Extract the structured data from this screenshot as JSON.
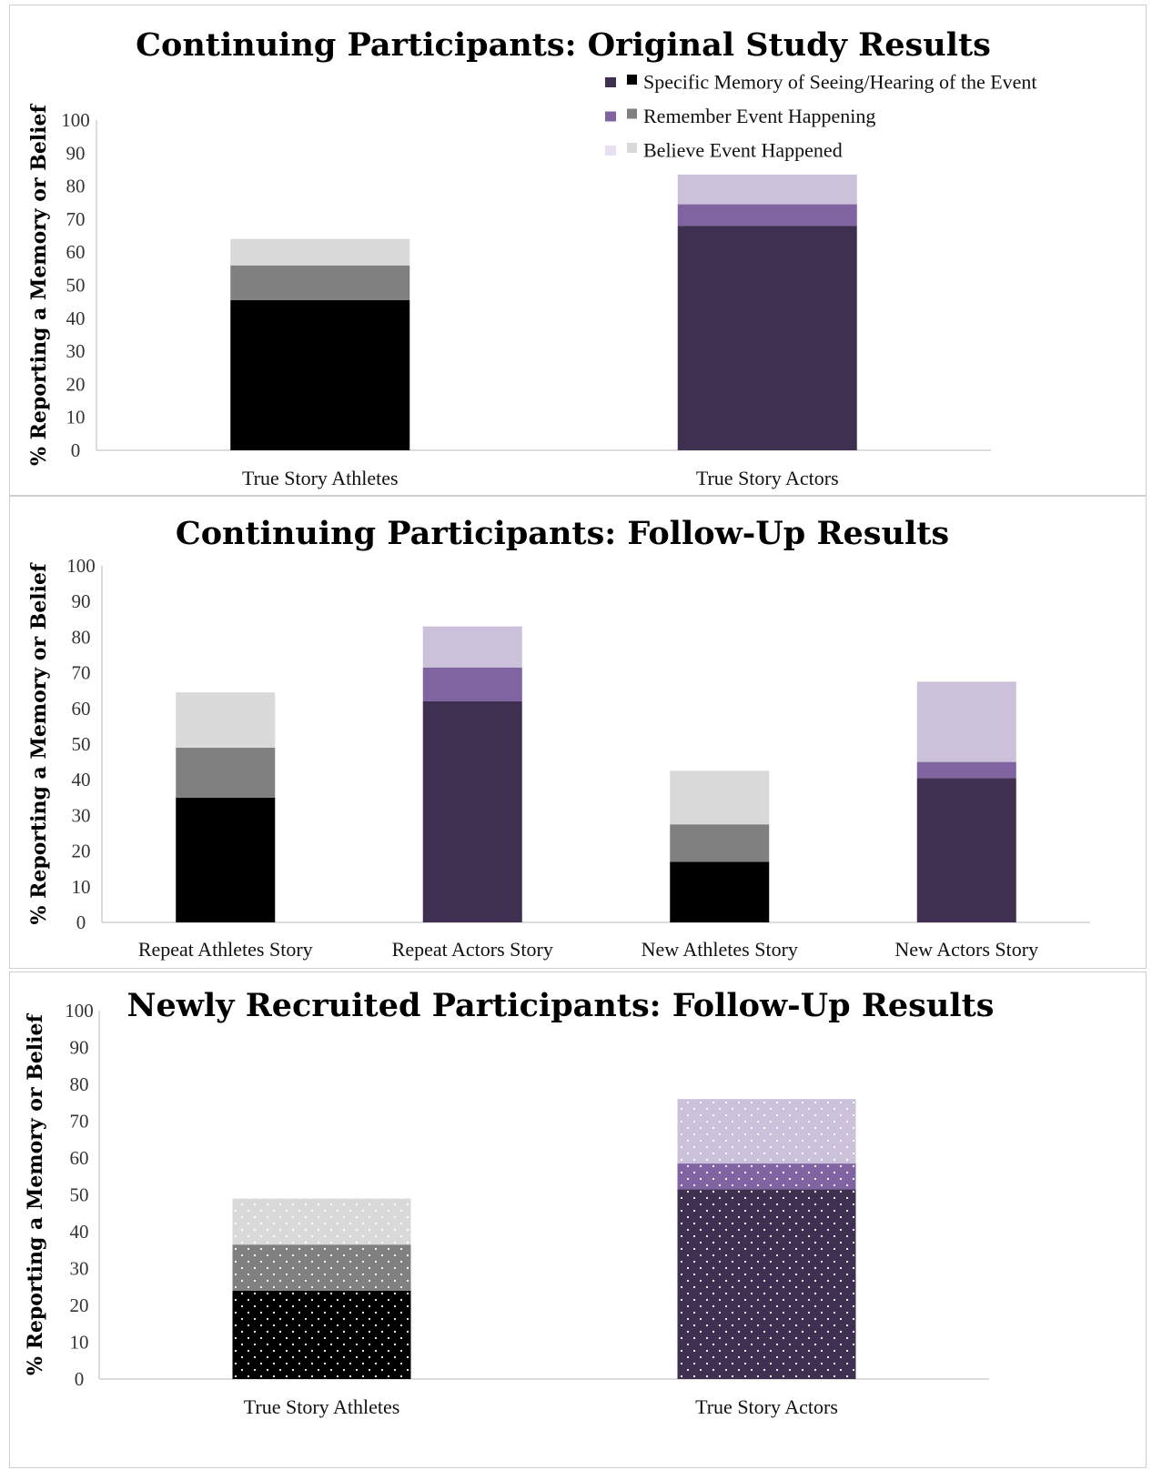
{
  "colors": {
    "purple_dark": "#3f3052",
    "purple_mid": "#8064a2",
    "purple_light": "#ccc1da",
    "black": "#000000",
    "gray_mid": "#808080",
    "gray_light": "#d9d9d9"
  },
  "legend": {
    "placement": "top-right of first panel",
    "items": [
      {
        "label": "Specific Memory of Seeing/Hearing of the Event",
        "swatch_purple": "#3f3052",
        "swatch_gray": "#000000"
      },
      {
        "label": "Remember Event Happening",
        "swatch_purple": "#8064a2",
        "swatch_gray": "#808080"
      },
      {
        "label": "Believe Event Happened",
        "swatch_purple": "#e8e0f0",
        "swatch_gray": "#d9d9d9"
      }
    ]
  },
  "chart_data": [
    {
      "type": "bar",
      "stacked": true,
      "title": "Continuing Participants: Original Study Results",
      "ylabel": "% Reporting a Memory or Belief",
      "ylim": [
        0,
        100
      ],
      "yticks": [
        0,
        10,
        20,
        30,
        40,
        50,
        60,
        70,
        80,
        90,
        100
      ],
      "categories": [
        "True Story Athletes",
        "True Story Actors"
      ],
      "palettes": [
        "gray",
        "purple"
      ],
      "pattern": "none",
      "series": [
        {
          "name": "Specific Memory of Seeing/Hearing of the Event",
          "values": [
            45.5,
            68
          ]
        },
        {
          "name": "Remember Event Happening",
          "values": [
            10.5,
            6.5
          ]
        },
        {
          "name": "Believe Event Happened",
          "values": [
            8,
            9
          ]
        }
      ]
    },
    {
      "type": "bar",
      "stacked": true,
      "title": "Continuing Participants: Follow-Up Results",
      "ylabel": "% Reporting a Memory or Belief",
      "ylim": [
        0,
        100
      ],
      "yticks": [
        0,
        10,
        20,
        30,
        40,
        50,
        60,
        70,
        80,
        90,
        100
      ],
      "categories": [
        "Repeat Athletes Story",
        "Repeat Actors Story",
        "New Athletes Story",
        "New Actors Story"
      ],
      "palettes": [
        "gray",
        "purple",
        "gray",
        "purple"
      ],
      "pattern": "none",
      "series": [
        {
          "name": "Specific Memory of Seeing/Hearing of the Event",
          "values": [
            35,
            62,
            17,
            40.5
          ]
        },
        {
          "name": "Remember Event Happening",
          "values": [
            14,
            9.5,
            10.5,
            4.5
          ]
        },
        {
          "name": "Believe Event Happened",
          "values": [
            15.5,
            11.5,
            15,
            22.5
          ]
        }
      ]
    },
    {
      "type": "bar",
      "stacked": true,
      "title": "Newly Recruited Participants: Follow-Up Results",
      "ylabel": "% Reporting a Memory or Belief",
      "ylim": [
        0,
        100
      ],
      "yticks": [
        0,
        10,
        20,
        30,
        40,
        50,
        60,
        70,
        80,
        90,
        100
      ],
      "categories": [
        "True Story Athletes",
        "True Story Actors"
      ],
      "palettes": [
        "gray",
        "purple"
      ],
      "pattern": "dots",
      "series": [
        {
          "name": "Specific Memory of Seeing/Hearing of the Event",
          "values": [
            24,
            51.5
          ]
        },
        {
          "name": "Remember Event Happening",
          "values": [
            12.5,
            7
          ]
        },
        {
          "name": "Believe Event Happened",
          "values": [
            12.5,
            17.5
          ]
        }
      ]
    }
  ]
}
